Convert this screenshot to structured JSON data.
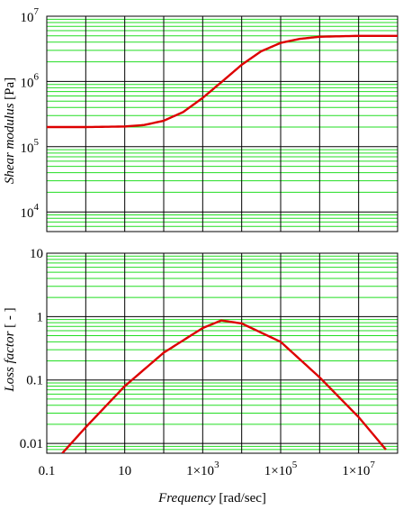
{
  "chart_data": [
    {
      "type": "line",
      "xscale": "log",
      "yscale": "log",
      "xlim": [
        0.1,
        100000000
      ],
      "ylim": [
        5000,
        10000000
      ],
      "xticks": [
        0.1,
        10,
        1000,
        100000,
        10000000
      ],
      "ylabel": {
        "italic": "Shear modulus",
        "unit": " [Pa]"
      },
      "yticks": [
        {
          "value": 10000,
          "base": "10",
          "exp": "4"
        },
        {
          "value": 100000,
          "base": "10",
          "exp": "5"
        },
        {
          "value": 1000000,
          "base": "10",
          "exp": "6"
        },
        {
          "value": 10000000,
          "base": "10",
          "exp": "7"
        }
      ],
      "series": [
        {
          "x": [
            0.1,
            1,
            10,
            31.6,
            100,
            316,
            1000,
            3162,
            10000,
            31623,
            100000,
            316228,
            1000000,
            10000000,
            100000000
          ],
          "y": [
            200000,
            200000,
            204000,
            215000,
            250000,
            340000,
            560000,
            1000000,
            1800000,
            2900000,
            3900000,
            4500000,
            4850000,
            5000000,
            5000000
          ]
        }
      ]
    },
    {
      "type": "line",
      "xscale": "log",
      "yscale": "log",
      "xlim": [
        0.1,
        100000000
      ],
      "ylim": [
        0.007,
        10
      ],
      "xticks": [
        0.1,
        10,
        1000,
        100000,
        10000000
      ],
      "ylabel": {
        "italic": "Loss factor",
        "unit": " [ - ]"
      },
      "yticks": [
        {
          "value": 0.01,
          "label": "0.01"
        },
        {
          "value": 0.1,
          "label": "0.1"
        },
        {
          "value": 1,
          "label": "1"
        },
        {
          "value": 10,
          "label": "10"
        }
      ],
      "series": [
        {
          "x": [
            0.25,
            1,
            10,
            100,
            1000,
            3000,
            10000,
            100000,
            1000000,
            10000000,
            50000000
          ],
          "y": [
            0.007,
            0.018,
            0.08,
            0.27,
            0.66,
            0.87,
            0.78,
            0.4,
            0.11,
            0.026,
            0.008
          ]
        }
      ]
    }
  ],
  "xaxis": {
    "label_italic": "Frequency",
    "label_unit": " [rad/sec]",
    "ticks": [
      {
        "value": 0.1,
        "text": "0.1"
      },
      {
        "value": 10,
        "text": "10"
      },
      {
        "value": 1000,
        "text": "1×10",
        "exp": "3"
      },
      {
        "value": 100000,
        "text": "1×10",
        "exp": "5"
      },
      {
        "value": 10000000,
        "text": "1×10",
        "exp": "7"
      }
    ]
  },
  "colors": {
    "curve": "#dd0000",
    "grid_minor": "#22dd22",
    "grid_major": "#000000"
  }
}
